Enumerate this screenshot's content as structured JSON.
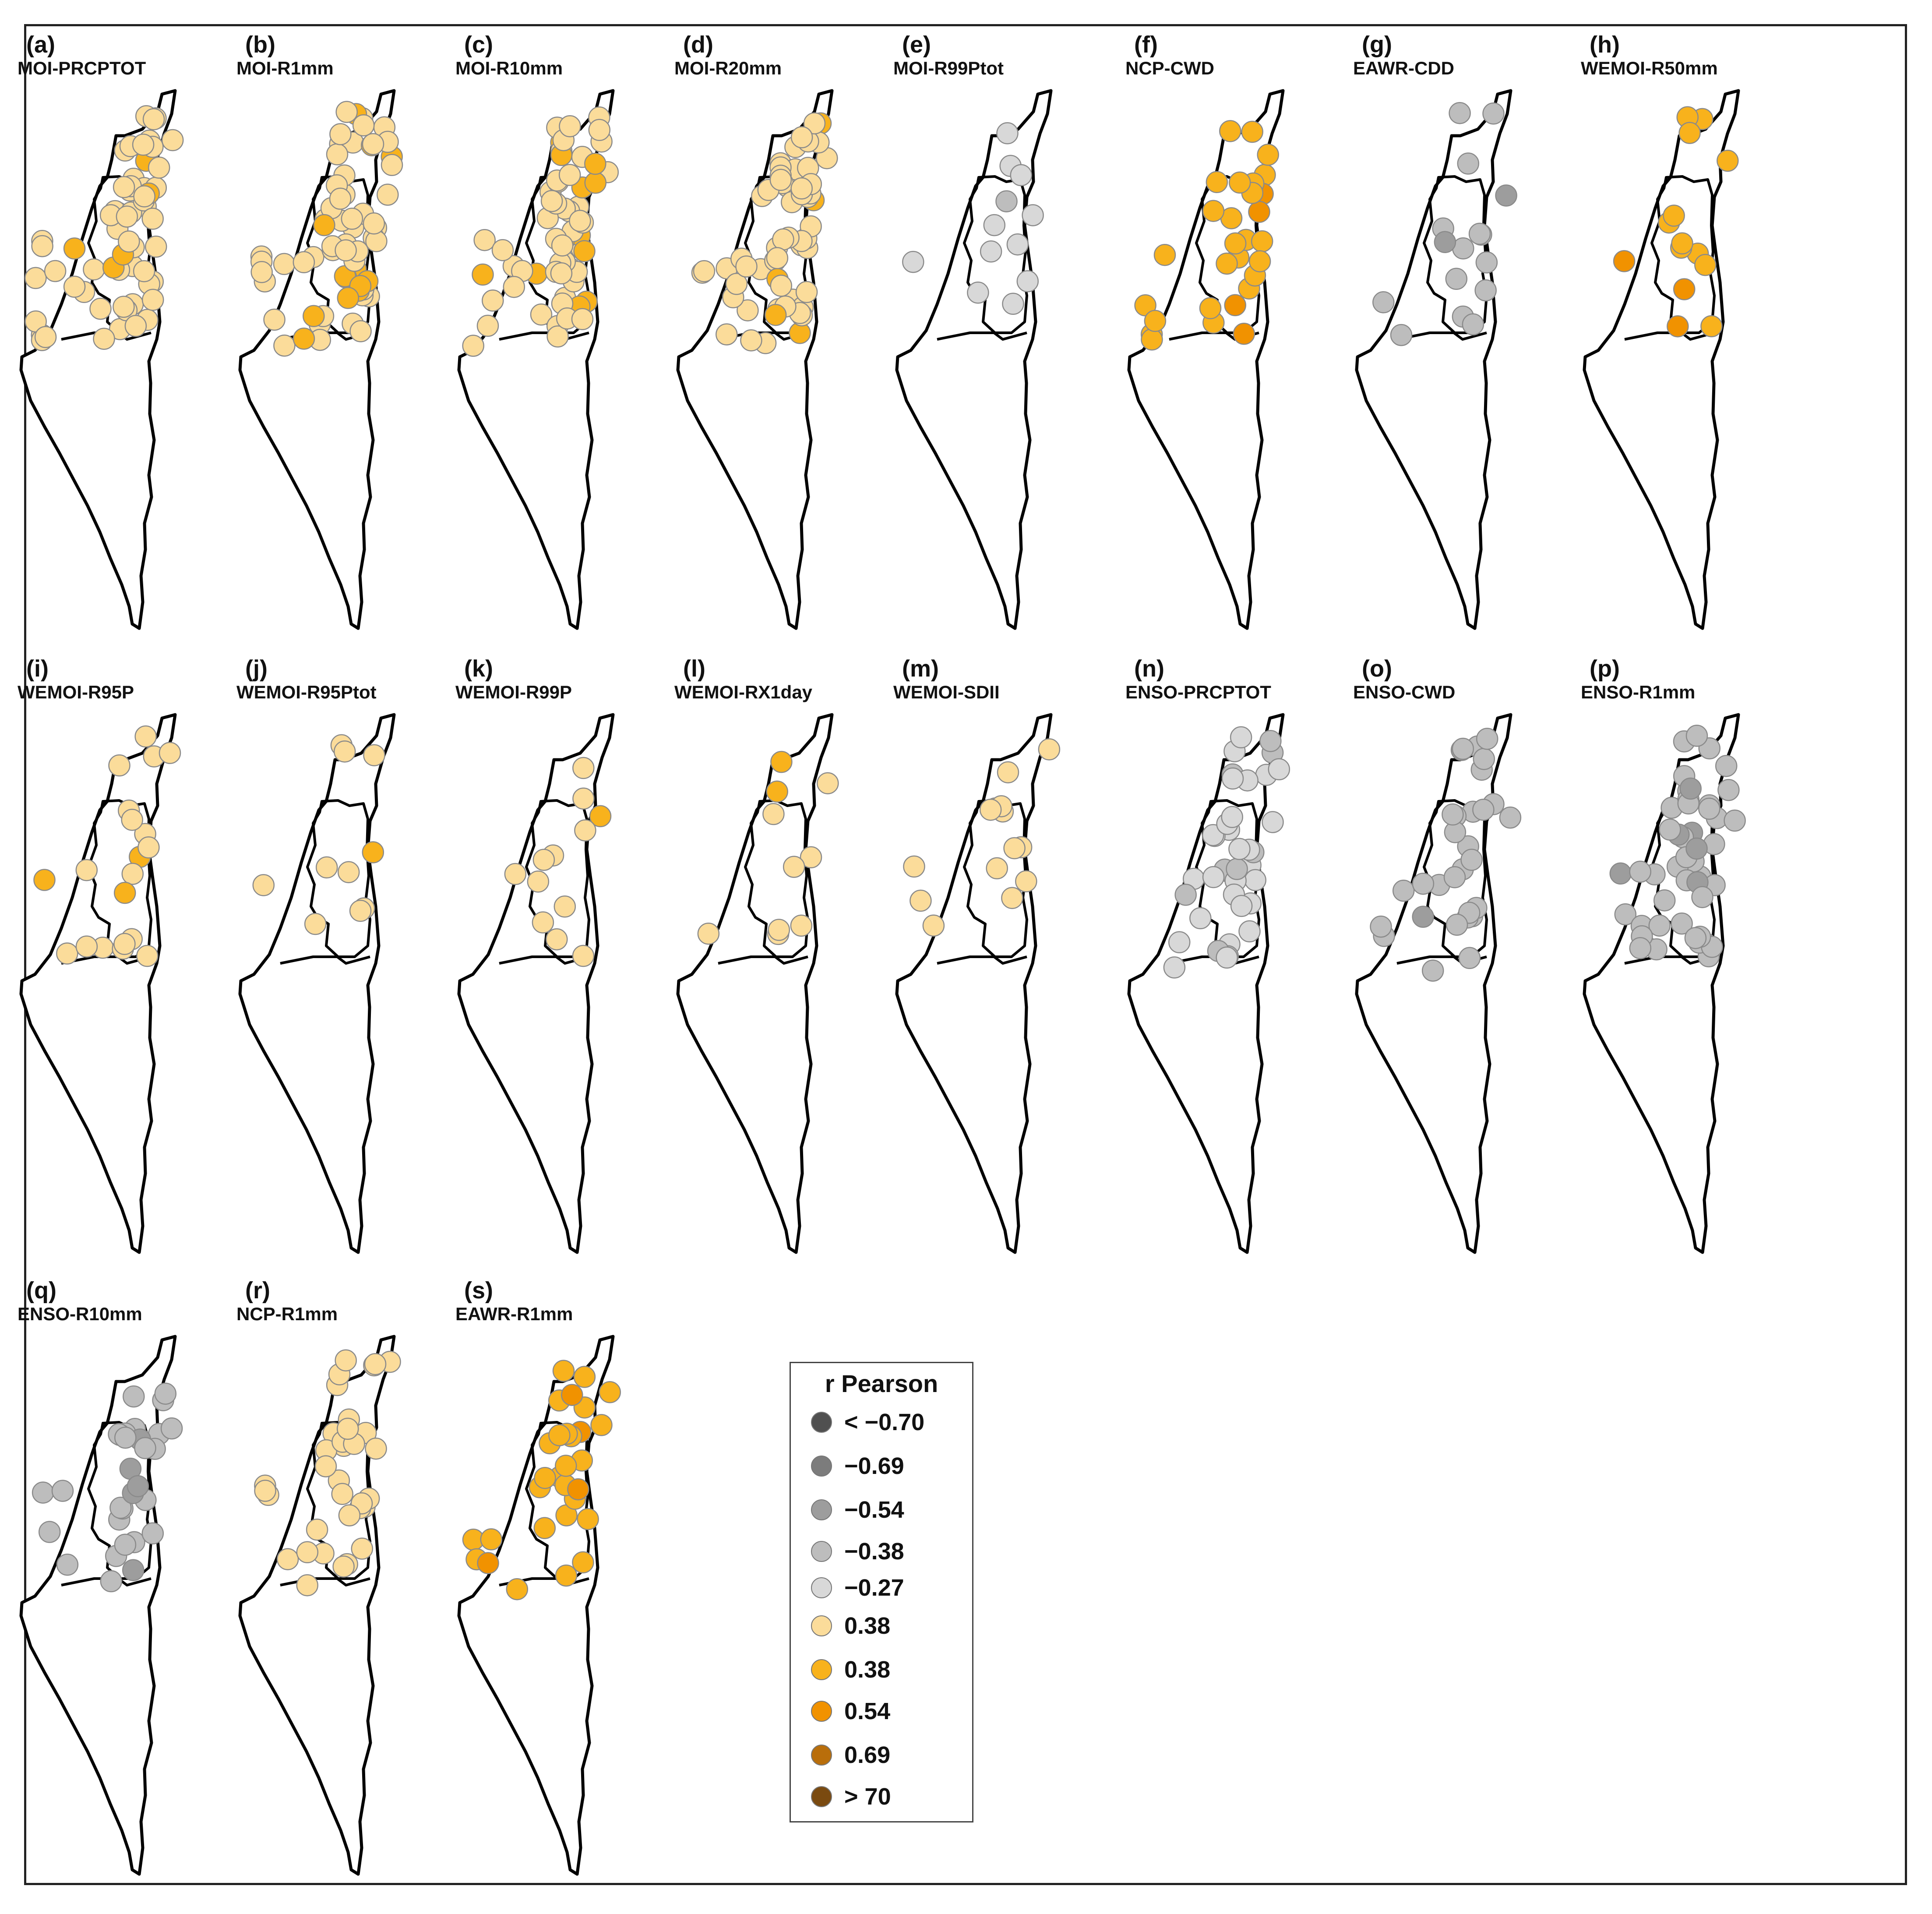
{
  "figure": {
    "legend": {
      "title": "r Pearson",
      "items": [
        {
          "label": "< −0.70",
          "color": "#505050"
        },
        {
          "label": "−0.69",
          "color": "#7c7c7c"
        },
        {
          "label": "−0.54",
          "color": "#9d9d9d"
        },
        {
          "label": "−0.38",
          "color": "#bdbdbd"
        },
        {
          "label": "−0.27",
          "color": "#d8d8d8"
        },
        {
          "label": "0.38",
          "color": "#fbdc9a"
        },
        {
          "label": "0.38",
          "color": "#f8b21c"
        },
        {
          "label": "0.54",
          "color": "#f19200"
        },
        {
          "label": "0.69",
          "color": "#b96e0b"
        },
        {
          "label": "> 70",
          "color": "#7a4a10"
        }
      ]
    },
    "panels": [
      {
        "letter": "(a)",
        "title": "MOI-PRCPTOT",
        "color_class": 5,
        "count": 60
      },
      {
        "letter": "(b)",
        "title": "MOI-R1mm",
        "color_class": 5,
        "count": 62
      },
      {
        "letter": "(c)",
        "title": "MOI-R10mm",
        "color_class": 5,
        "count": 60
      },
      {
        "letter": "(d)",
        "title": "MOI-R20mm",
        "color_class": 5,
        "count": 58
      },
      {
        "letter": "(e)",
        "title": "MOI-R99Ptot",
        "color_class": 4,
        "count": 12
      },
      {
        "letter": "(f)",
        "title": "NCP-CWD",
        "color_class": 6,
        "count": 30
      },
      {
        "letter": "(g)",
        "title": "EAWR-CDD",
        "color_class": 3,
        "count": 16
      },
      {
        "letter": "(h)",
        "title": "WEMOI-R50mm",
        "color_class": 6,
        "count": 14
      },
      {
        "letter": "(i)",
        "title": "WEMOI-R95P",
        "color_class": 5,
        "count": 20
      },
      {
        "letter": "(j)",
        "title": "WEMOI-R95Ptot",
        "color_class": 5,
        "count": 10
      },
      {
        "letter": "(k)",
        "title": "WEMOI-R99P",
        "color_class": 5,
        "count": 12
      },
      {
        "letter": "(l)",
        "title": "WEMOI-RX1day",
        "color_class": 5,
        "count": 10
      },
      {
        "letter": "(m)",
        "title": "WEMOI-SDII",
        "color_class": 5,
        "count": 14
      },
      {
        "letter": "(n)",
        "title": "ENSO-PRCPTOT",
        "color_class": 4,
        "count": 38
      },
      {
        "letter": "(o)",
        "title": "ENSO-CWD",
        "color_class": 3,
        "count": 30
      },
      {
        "letter": "(p)",
        "title": "ENSO-R1mm",
        "color_class": 3,
        "count": 48
      },
      {
        "letter": "(q)",
        "title": "ENSO-R10mm",
        "color_class": 3,
        "count": 30
      },
      {
        "letter": "(r)",
        "title": "NCP-R1mm",
        "color_class": 5,
        "count": 34
      },
      {
        "letter": "(s)",
        "title": "EAWR-R1mm",
        "color_class": 6,
        "count": 30
      }
    ]
  }
}
